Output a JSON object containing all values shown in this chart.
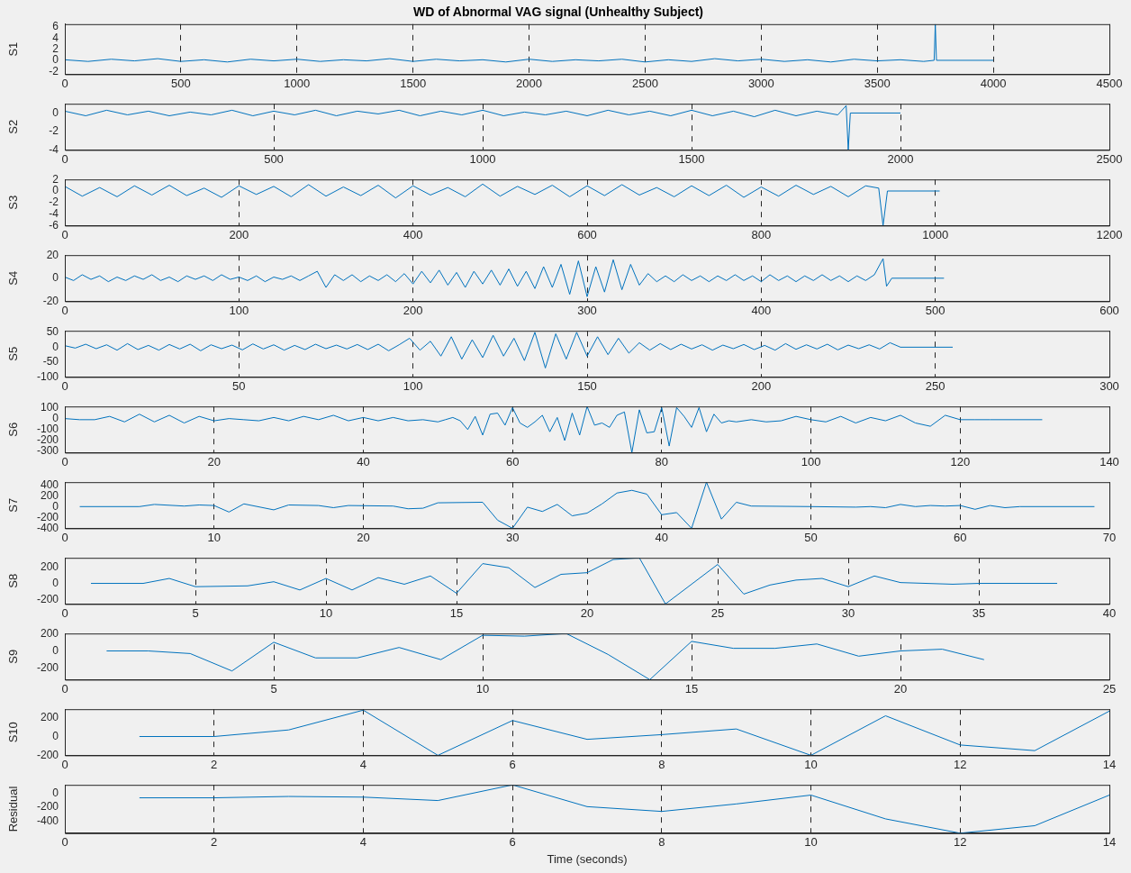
{
  "chart_data": [
    {
      "type": "line",
      "title": "WD of Abnormal VAG signal (Unhealthy Subject)",
      "ylabel": "S1",
      "grid": "x",
      "marker": "none",
      "xlim": [
        0,
        4500
      ],
      "xticks": [
        0,
        500,
        1000,
        1500,
        2000,
        2500,
        3000,
        3500,
        4000,
        4500
      ],
      "ylim": [
        -2.5,
        6.5
      ],
      "yticks": [
        -2,
        0,
        2,
        4,
        6
      ],
      "x": [
        0,
        100,
        200,
        300,
        400,
        500,
        600,
        700,
        800,
        900,
        1000,
        1100,
        1200,
        1300,
        1400,
        1500,
        1600,
        1700,
        1800,
        1900,
        2000,
        2100,
        2200,
        2300,
        2400,
        2500,
        2600,
        2700,
        2800,
        2900,
        3000,
        3100,
        3200,
        3300,
        3400,
        3500,
        3600,
        3700,
        3745,
        3750,
        3755,
        4000
      ],
      "series": [
        {
          "color": "#0072bd",
          "values": [
            0.1,
            -0.2,
            0.2,
            -0.1,
            0.3,
            -0.2,
            0.1,
            -0.3,
            0.2,
            -0.1,
            0.2,
            -0.2,
            0.1,
            -0.1,
            0.3,
            -0.2,
            0.2,
            -0.1,
            0.1,
            -0.3,
            0.2,
            -0.2,
            0.1,
            -0.1,
            0.2,
            -0.3,
            0.1,
            -0.2,
            0.3,
            -0.1,
            0.2,
            -0.2,
            0.1,
            -0.3,
            0.2,
            -0.1,
            0.1,
            -0.2,
            0,
            6.5,
            0,
            0
          ]
        }
      ]
    },
    {
      "type": "line",
      "ylabel": "S2",
      "grid": "x",
      "marker": "none",
      "xlim": [
        0,
        2500
      ],
      "xticks": [
        0,
        500,
        1000,
        1500,
        2000,
        2500
      ],
      "ylim": [
        -4,
        1
      ],
      "yticks": [
        -4,
        -2,
        0
      ],
      "x": [
        0,
        50,
        100,
        150,
        200,
        250,
        300,
        350,
        400,
        450,
        500,
        550,
        600,
        650,
        700,
        750,
        800,
        850,
        900,
        950,
        1000,
        1050,
        1100,
        1150,
        1200,
        1250,
        1300,
        1350,
        1400,
        1450,
        1500,
        1550,
        1600,
        1650,
        1700,
        1750,
        1800,
        1850,
        1870,
        1875,
        1880,
        2000
      ],
      "series": [
        {
          "color": "#0072bd",
          "values": [
            0.2,
            -0.3,
            0.3,
            -0.2,
            0.2,
            -0.3,
            0.1,
            -0.2,
            0.3,
            -0.3,
            0.2,
            -0.2,
            0.3,
            -0.3,
            0.2,
            -0.1,
            0.3,
            -0.3,
            0.2,
            -0.2,
            0.3,
            -0.3,
            0.1,
            -0.2,
            0.2,
            -0.3,
            0.3,
            -0.2,
            0.2,
            -0.3,
            0.3,
            -0.3,
            0.2,
            -0.4,
            0.3,
            -0.3,
            0.2,
            -0.2,
            0.8,
            -4,
            0,
            0
          ]
        }
      ]
    },
    {
      "type": "line",
      "ylabel": "S3",
      "grid": "x",
      "marker": "none",
      "xlim": [
        0,
        1200
      ],
      "xticks": [
        0,
        200,
        400,
        600,
        800,
        1000,
        1200
      ],
      "ylim": [
        -6,
        2
      ],
      "yticks": [
        -6,
        -4,
        -2,
        0,
        2
      ],
      "x": [
        0,
        20,
        40,
        60,
        80,
        100,
        120,
        140,
        160,
        180,
        200,
        220,
        240,
        260,
        280,
        300,
        320,
        340,
        360,
        380,
        400,
        420,
        440,
        460,
        480,
        500,
        520,
        540,
        560,
        580,
        600,
        620,
        640,
        660,
        680,
        700,
        720,
        740,
        760,
        780,
        800,
        820,
        840,
        860,
        880,
        900,
        920,
        935,
        940,
        945,
        1005
      ],
      "series": [
        {
          "color": "#0072bd",
          "values": [
            0.8,
            -0.9,
            0.6,
            -1,
            0.9,
            -0.7,
            1,
            -0.8,
            0.5,
            -1.1,
            0.9,
            -0.6,
            0.8,
            -1,
            1.1,
            -0.9,
            0.7,
            -0.8,
            1,
            -1.2,
            0.9,
            -0.7,
            0.6,
            -1,
            1.2,
            -0.9,
            0.8,
            -0.6,
            1,
            -1,
            0.9,
            -0.8,
            1.1,
            -0.7,
            0.6,
            -1,
            0.9,
            -0.8,
            1,
            -1.1,
            0.7,
            -0.9,
            1,
            -0.6,
            0.8,
            -1,
            0.9,
            0.5,
            -6,
            0,
            0
          ]
        }
      ]
    },
    {
      "type": "line",
      "ylabel": "S4",
      "grid": "x",
      "marker": "none",
      "xlim": [
        0,
        600
      ],
      "xticks": [
        0,
        100,
        200,
        300,
        400,
        500,
        600
      ],
      "ylim": [
        -20,
        20
      ],
      "yticks": [
        -20,
        0,
        20
      ],
      "x": [
        0,
        5,
        10,
        15,
        20,
        25,
        30,
        35,
        40,
        45,
        50,
        55,
        60,
        65,
        70,
        75,
        80,
        85,
        90,
        95,
        100,
        105,
        110,
        115,
        120,
        125,
        130,
        135,
        140,
        145,
        150,
        155,
        160,
        165,
        170,
        175,
        180,
        185,
        190,
        195,
        200,
        205,
        210,
        215,
        220,
        225,
        230,
        235,
        240,
        245,
        250,
        255,
        260,
        265,
        270,
        275,
        280,
        285,
        290,
        295,
        300,
        305,
        310,
        315,
        320,
        325,
        330,
        335,
        340,
        345,
        350,
        355,
        360,
        365,
        370,
        375,
        380,
        385,
        390,
        395,
        400,
        405,
        410,
        415,
        420,
        425,
        430,
        435,
        440,
        445,
        450,
        455,
        460,
        465,
        470,
        472,
        475,
        505
      ],
      "series": [
        {
          "color": "#0072bd",
          "values": [
            1,
            -2,
            3,
            -1,
            2,
            -3,
            1,
            -2,
            2,
            -1,
            3,
            -2,
            1,
            -3,
            2,
            -1,
            2,
            -2,
            3,
            -1,
            1,
            -2,
            2,
            -3,
            1,
            -1,
            2,
            -2,
            2,
            6,
            -8,
            3,
            -2,
            3,
            -3,
            2,
            -2,
            3,
            -3,
            4,
            -5,
            6,
            -4,
            7,
            -6,
            5,
            -8,
            6,
            -5,
            7,
            -6,
            8,
            -7,
            6,
            -9,
            10,
            -8,
            12,
            -14,
            15,
            -16,
            10,
            -12,
            16,
            -10,
            12,
            -6,
            4,
            -3,
            2,
            -3,
            3,
            -2,
            2,
            -3,
            2,
            -2,
            3,
            -2,
            2,
            -3,
            3,
            -2,
            2,
            -3,
            2,
            -2,
            3,
            -2,
            2,
            -3,
            2,
            -2,
            3,
            17,
            -7,
            0,
            0
          ]
        }
      ]
    },
    {
      "type": "line",
      "ylabel": "S5",
      "grid": "x",
      "marker": "none",
      "xlim": [
        0,
        300
      ],
      "xticks": [
        0,
        50,
        100,
        150,
        200,
        250,
        300
      ],
      "ylim": [
        -100,
        55
      ],
      "yticks": [
        -100,
        -50,
        0,
        50
      ],
      "x": [
        0,
        3,
        6,
        9,
        12,
        15,
        18,
        21,
        24,
        27,
        30,
        33,
        36,
        39,
        42,
        45,
        48,
        51,
        54,
        57,
        60,
        63,
        66,
        69,
        72,
        75,
        78,
        81,
        84,
        87,
        90,
        93,
        96,
        99,
        102,
        105,
        108,
        111,
        114,
        117,
        120,
        123,
        126,
        129,
        132,
        135,
        138,
        141,
        144,
        147,
        150,
        153,
        156,
        159,
        162,
        165,
        168,
        171,
        174,
        177,
        180,
        183,
        186,
        189,
        192,
        195,
        198,
        201,
        204,
        207,
        210,
        213,
        216,
        219,
        222,
        225,
        228,
        231,
        234,
        237,
        240,
        255
      ],
      "series": [
        {
          "color": "#0072bd",
          "values": [
            5,
            -3,
            10,
            -5,
            8,
            -10,
            12,
            -8,
            6,
            -10,
            9,
            -6,
            10,
            -12,
            8,
            -5,
            7,
            -9,
            11,
            -6,
            8,
            -10,
            6,
            -8,
            10,
            -5,
            7,
            -6,
            9,
            -8,
            10,
            -12,
            8,
            30,
            -10,
            20,
            -30,
            35,
            -40,
            25,
            -35,
            40,
            -30,
            30,
            -45,
            50,
            -70,
            45,
            -40,
            50,
            -30,
            35,
            -25,
            30,
            -20,
            15,
            -10,
            12,
            -8,
            10,
            -6,
            8,
            -10,
            7,
            -5,
            9,
            -8,
            6,
            -10,
            12,
            -7,
            8,
            -6,
            10,
            -9,
            7,
            -5,
            8,
            -6,
            15,
            0,
            0
          ]
        }
      ]
    },
    {
      "type": "line",
      "ylabel": "S6",
      "grid": "x",
      "marker": "none",
      "xlim": [
        0,
        140
      ],
      "xticks": [
        0,
        20,
        40,
        60,
        80,
        100,
        120,
        140
      ],
      "ylim": [
        -310,
        110
      ],
      "yticks": [
        -300,
        -200,
        -100,
        0,
        100
      ],
      "x": [
        0,
        2,
        4,
        6,
        8,
        10,
        12,
        14,
        16,
        18,
        20,
        22,
        24,
        26,
        28,
        30,
        32,
        34,
        36,
        38,
        40,
        42,
        44,
        46,
        48,
        50,
        51,
        52,
        53,
        54,
        55,
        56,
        57,
        58,
        59,
        60,
        61,
        62,
        63,
        64,
        65,
        66,
        67,
        68,
        69,
        70,
        71,
        72,
        73,
        74,
        75,
        76,
        77,
        78,
        79,
        80,
        81,
        82,
        83,
        84,
        85,
        86,
        87,
        88,
        89,
        90,
        92,
        94,
        96,
        98,
        100,
        102,
        104,
        106,
        108,
        110,
        112,
        114,
        116,
        118,
        120,
        122,
        124,
        131
      ],
      "series": [
        {
          "color": "#0072bd",
          "values": [
            0,
            -10,
            -10,
            20,
            -30,
            40,
            -30,
            30,
            -40,
            20,
            -20,
            0,
            -10,
            -20,
            10,
            -20,
            20,
            -10,
            30,
            -20,
            10,
            -20,
            10,
            -20,
            -10,
            -30,
            -10,
            10,
            -20,
            -100,
            20,
            -150,
            40,
            50,
            -60,
            100,
            -40,
            -80,
            -30,
            30,
            -120,
            10,
            -200,
            50,
            -150,
            110,
            -60,
            -40,
            -80,
            30,
            60,
            -310,
            80,
            -130,
            -120,
            100,
            -250,
            100,
            20,
            -80,
            100,
            -120,
            40,
            -40,
            -20,
            -30,
            -10,
            -30,
            -20,
            20,
            -10,
            -30,
            20,
            -40,
            10,
            -20,
            30,
            -40,
            -70,
            30,
            -10,
            -10,
            -10,
            -10
          ]
        }
      ]
    },
    {
      "type": "line",
      "ylabel": "S7",
      "grid": "x",
      "marker": "none",
      "xlim": [
        0,
        70
      ],
      "xticks": [
        0,
        10,
        20,
        30,
        40,
        50,
        60,
        70
      ],
      "ylim": [
        -400,
        450
      ],
      "yticks": [
        -400,
        -200,
        0,
        200,
        400
      ],
      "x": [
        1,
        5,
        6,
        8,
        9,
        10,
        11,
        12,
        14,
        15,
        17,
        18,
        19,
        22,
        23,
        24,
        25,
        28,
        29,
        30,
        31,
        32,
        33,
        34,
        35,
        36,
        37,
        38,
        39,
        40,
        41,
        42,
        43,
        44,
        45,
        46,
        50,
        53,
        54,
        55,
        56,
        57,
        58,
        59,
        60,
        61,
        62,
        63,
        64,
        69
      ],
      "series": [
        {
          "color": "#0072bd",
          "values": [
            0,
            0,
            40,
            10,
            30,
            20,
            -100,
            50,
            -60,
            30,
            20,
            -20,
            20,
            10,
            -40,
            -30,
            70,
            80,
            -250,
            -400,
            -10,
            -90,
            40,
            -170,
            -120,
            50,
            250,
            300,
            230,
            -150,
            -110,
            -400,
            450,
            -230,
            80,
            10,
            0,
            -10,
            0,
            -20,
            40,
            0,
            20,
            10,
            20,
            -50,
            20,
            -20,
            0,
            0
          ]
        }
      ]
    },
    {
      "type": "line",
      "ylabel": "S8",
      "grid": "x",
      "marker": "none",
      "xlim": [
        0,
        40
      ],
      "xticks": [
        0,
        5,
        10,
        15,
        20,
        25,
        30,
        35,
        40
      ],
      "ylim": [
        -250,
        310
      ],
      "yticks": [
        -200,
        0,
        200
      ],
      "x": [
        1,
        3,
        4,
        5,
        7,
        8,
        9,
        10,
        11,
        12,
        13,
        14,
        15,
        16,
        17,
        18,
        19,
        20,
        21,
        22,
        23,
        25,
        26,
        27,
        28,
        29,
        30,
        31,
        32,
        34,
        35,
        37,
        38
      ],
      "series": [
        {
          "color": "#0072bd",
          "values": [
            0,
            0,
            60,
            -40,
            -30,
            20,
            -80,
            60,
            -80,
            70,
            -10,
            90,
            -120,
            240,
            190,
            -50,
            110,
            130,
            290,
            310,
            -250,
            230,
            -130,
            -20,
            40,
            60,
            -40,
            90,
            10,
            -10,
            0,
            0,
            0
          ]
        }
      ]
    },
    {
      "type": "line",
      "ylabel": "S9",
      "grid": "x",
      "marker": "none",
      "xlim": [
        0,
        25
      ],
      "xticks": [
        0,
        5,
        10,
        15,
        20,
        25
      ],
      "ylim": [
        -330,
        200
      ],
      "yticks": [
        -200,
        0,
        200
      ],
      "x": [
        1,
        2,
        3,
        4,
        5,
        6,
        7,
        8,
        9,
        10,
        11,
        12,
        13,
        14,
        15,
        16,
        17,
        18,
        19,
        20,
        21,
        22
      ],
      "series": [
        {
          "color": "#0072bd",
          "values": [
            0,
            0,
            -30,
            -230,
            100,
            -80,
            -80,
            40,
            -100,
            180,
            170,
            200,
            -40,
            -330,
            110,
            30,
            30,
            80,
            -60,
            0,
            20,
            -100
          ]
        }
      ]
    },
    {
      "type": "line",
      "ylabel": "S10",
      "grid": "x",
      "marker": "none",
      "xlim": [
        0,
        14
      ],
      "xticks": [
        0,
        2,
        4,
        6,
        8,
        10,
        12,
        14
      ],
      "ylim": [
        -200,
        290
      ],
      "yticks": [
        -200,
        0,
        200
      ],
      "x": [
        1,
        2,
        3,
        4,
        5,
        6,
        7,
        8,
        9,
        10,
        11,
        12,
        13,
        14
      ],
      "series": [
        {
          "color": "#0072bd",
          "values": [
            0,
            0,
            70,
            280,
            -200,
            170,
            -30,
            20,
            80,
            -200,
            220,
            -90,
            -150,
            270
          ]
        }
      ]
    },
    {
      "type": "line",
      "ylabel": "Residual",
      "xlabel": "Time (seconds)",
      "grid": "x",
      "marker": "none",
      "xlim": [
        0,
        14
      ],
      "xticks": [
        0,
        2,
        4,
        6,
        8,
        10,
        12,
        14
      ],
      "ylim": [
        -580,
        130
      ],
      "yticks": [
        -400,
        -200,
        0
      ],
      "x": [
        1,
        2,
        3,
        4,
        5,
        6,
        7,
        8,
        9,
        10,
        11,
        12,
        13,
        14
      ],
      "series": [
        {
          "color": "#0072bd",
          "values": [
            -60,
            -60,
            -40,
            -50,
            -100,
            130,
            -190,
            -260,
            -150,
            -20,
            -370,
            -580,
            -470,
            -20
          ]
        }
      ]
    }
  ]
}
